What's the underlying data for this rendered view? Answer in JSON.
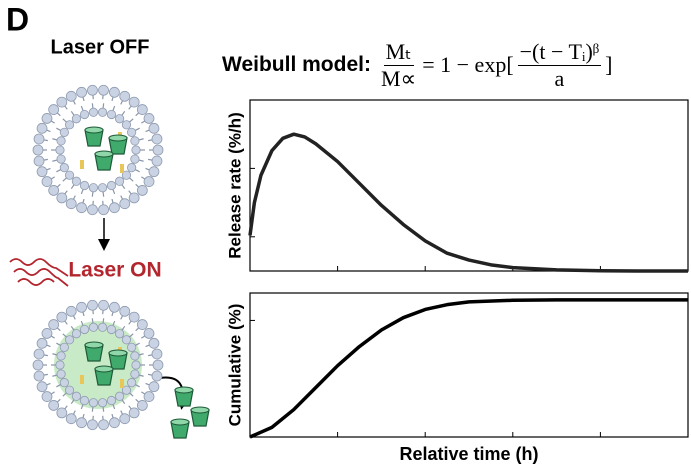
{
  "panel_label": "D",
  "left": {
    "label_off": "Laser OFF",
    "label_on": "Laser ON"
  },
  "formula": {
    "lead": "Weibull model:",
    "lhs_num": "Mₜ",
    "lhs_den": "M∝",
    "middle": "= 1 − exp[",
    "rhs_num": "−(t − Tᵢ)ᵝ",
    "rhs_den": "a",
    "end": "]"
  },
  "chart_data": [
    {
      "type": "line",
      "ylabel": "Release rate (%/h)",
      "color": "#222222",
      "x": [
        0,
        0.1,
        0.25,
        0.5,
        0.75,
        1,
        1.25,
        1.5,
        2,
        2.5,
        3,
        3.5,
        4,
        4.5,
        5,
        5.5,
        6,
        7,
        8,
        9,
        10
      ],
      "values": [
        0.26,
        0.5,
        0.7,
        0.88,
        0.97,
        1.0,
        0.98,
        0.93,
        0.8,
        0.64,
        0.48,
        0.34,
        0.22,
        0.13,
        0.08,
        0.045,
        0.025,
        0.008,
        0.002,
        0,
        0
      ],
      "xlim": [
        0,
        10
      ],
      "ylim": [
        0,
        1.25
      ],
      "xticks": [
        2,
        4,
        6,
        8
      ],
      "yticks": [
        0.25,
        0.75
      ]
    },
    {
      "type": "line",
      "ylabel": "Cumulative (%)",
      "xlabel": "Relative time (h)",
      "color": "#000000",
      "x": [
        0,
        0.5,
        1,
        1.5,
        2,
        2.5,
        3,
        3.5,
        4,
        4.5,
        5,
        6,
        7,
        8,
        10
      ],
      "values": [
        0,
        0.07,
        0.2,
        0.36,
        0.52,
        0.66,
        0.78,
        0.87,
        0.93,
        0.965,
        0.985,
        0.997,
        1,
        1,
        1
      ],
      "xlim": [
        0,
        10
      ],
      "ylim": [
        0,
        1.05
      ],
      "xticks": [
        2,
        4,
        6,
        8
      ],
      "yticks": [
        0.85
      ]
    }
  ]
}
